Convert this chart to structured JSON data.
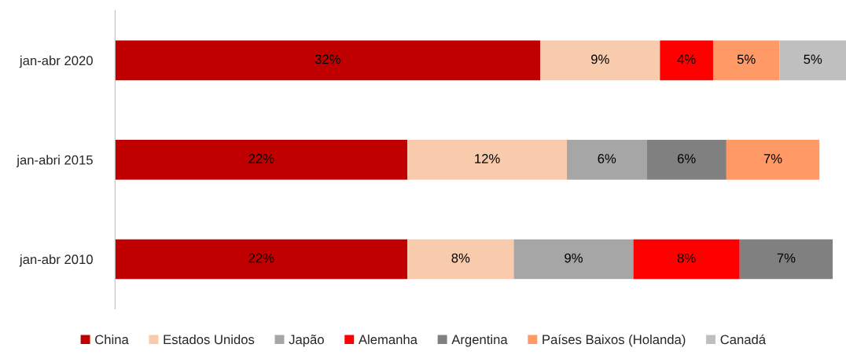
{
  "chart_data": {
    "type": "bar",
    "orientation": "horizontal",
    "stacked": true,
    "tick_labels": "y",
    "legend": "bottom",
    "grid": false,
    "categories": [
      "jan-abr 2020",
      "jan-abri 2015",
      "jan-abr 2010"
    ],
    "series": [
      {
        "name": "China",
        "color": "#c00000",
        "values": [
          32,
          22,
          22
        ],
        "value_labels": [
          "32%",
          "22%",
          "22%"
        ]
      },
      {
        "name": "Estados Unidos",
        "color": "#f8cbad",
        "values": [
          9,
          12,
          8
        ],
        "value_labels": [
          "9%",
          "12%",
          "8%"
        ]
      },
      {
        "name": "Japão",
        "color": "#a6a6a6",
        "values": [
          null,
          6,
          9
        ],
        "value_labels": [
          null,
          "6%",
          "9%"
        ]
      },
      {
        "name": "Alemanha",
        "color": "#ff0000",
        "values": [
          4,
          null,
          8
        ],
        "value_labels": [
          "4%",
          null,
          "8%"
        ]
      },
      {
        "name": "Argentina",
        "color": "#808080",
        "values": [
          null,
          6,
          7
        ],
        "value_labels": [
          null,
          "6%",
          "7%"
        ]
      },
      {
        "name": "Países Baixos (Holanda)",
        "color": "#ff9966",
        "values": [
          5,
          7,
          null
        ],
        "value_labels": [
          "5%",
          "7%",
          null
        ]
      },
      {
        "name": "Canadá",
        "color": "#bfbfbf",
        "values": [
          5,
          null,
          null
        ],
        "value_labels": [
          "5%",
          null,
          null
        ]
      }
    ]
  }
}
